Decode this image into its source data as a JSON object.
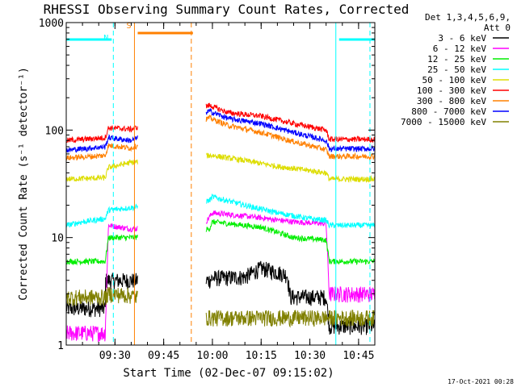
{
  "chart_data": {
    "type": "line",
    "title": "RHESSI Observing Summary Count Rates, Corrected",
    "xlabel": "Start Time (02-Dec-07 09:15:02)",
    "ylabel": "Corrected Count Rate (s⁻¹ detector⁻¹)",
    "yscale": "log",
    "ylim": [
      1,
      1000
    ],
    "xlim_minutes_after_0915": [
      0,
      95
    ],
    "x_ticks": [
      {
        "label": "09:30",
        "min": 15
      },
      {
        "label": "09:45",
        "min": 30
      },
      {
        "label": "10:00",
        "min": 45
      },
      {
        "label": "10:15",
        "min": 60
      },
      {
        "label": "10:30",
        "min": 75
      },
      {
        "label": "10:45",
        "min": 90
      }
    ],
    "y_ticks": [
      {
        "label": "1",
        "value": 1
      },
      {
        "label": "10",
        "value": 10
      },
      {
        "label": "100",
        "value": 100
      },
      {
        "label": "1000",
        "value": 1000
      }
    ],
    "legend_header": [
      "Det 1,3,4,5,6,9,",
      "Att 0"
    ],
    "legend_position": "right",
    "series": [
      {
        "name": "3 - 6 keV",
        "color": "#000000",
        "points": [
          [
            0,
            2.2
          ],
          [
            12,
            2.2
          ],
          [
            12,
            4
          ],
          [
            20,
            4
          ],
          [
            44,
            4
          ],
          [
            45,
            4.2
          ],
          [
            55,
            4.3
          ],
          [
            60,
            5.2
          ],
          [
            68,
            4.5
          ],
          [
            69,
            2.8
          ],
          [
            80,
            2.8
          ],
          [
            81,
            1.5
          ],
          [
            95,
            1.5
          ]
        ]
      },
      {
        "name": "6 - 12 keV",
        "color": "#ff00ff",
        "points": [
          [
            0,
            1.3
          ],
          [
            12,
            1.3
          ],
          [
            13,
            13
          ],
          [
            20,
            12
          ],
          [
            43,
            14
          ],
          [
            45,
            17
          ],
          [
            58,
            15.5
          ],
          [
            70,
            14
          ],
          [
            80,
            13.5
          ],
          [
            81,
            3
          ],
          [
            95,
            3
          ]
        ]
      },
      {
        "name": "12 - 25 keV",
        "color": "#00ee00",
        "points": [
          [
            0,
            6
          ],
          [
            12,
            6
          ],
          [
            13,
            10
          ],
          [
            20,
            10
          ],
          [
            44,
            12
          ],
          [
            45,
            14
          ],
          [
            60,
            12.5
          ],
          [
            70,
            10
          ],
          [
            80,
            9.5
          ],
          [
            81,
            6
          ],
          [
            95,
            6
          ]
        ]
      },
      {
        "name": "25 - 50 keV",
        "color": "#00ffff",
        "points": [
          [
            0,
            13
          ],
          [
            5,
            14
          ],
          [
            12,
            15
          ],
          [
            13,
            18
          ],
          [
            20,
            19
          ],
          [
            44,
            22
          ],
          [
            45,
            24
          ],
          [
            55,
            20
          ],
          [
            65,
            17
          ],
          [
            75,
            15
          ],
          [
            80,
            14.5
          ],
          [
            81,
            13
          ],
          [
            95,
            13
          ]
        ]
      },
      {
        "name": "50 - 100 keV",
        "color": "#dddd00",
        "points": [
          [
            0,
            35
          ],
          [
            12,
            36
          ],
          [
            13,
            45
          ],
          [
            20,
            50
          ],
          [
            44,
            58
          ],
          [
            45,
            58
          ],
          [
            55,
            52
          ],
          [
            65,
            46
          ],
          [
            75,
            42
          ],
          [
            80,
            40
          ],
          [
            81,
            35
          ],
          [
            95,
            35
          ]
        ]
      },
      {
        "name": "100 - 300 keV",
        "color": "#ff0000",
        "points": [
          [
            0,
            80
          ],
          [
            12,
            85
          ],
          [
            13,
            105
          ],
          [
            20,
            102
          ],
          [
            44,
            170
          ],
          [
            50,
            145
          ],
          [
            60,
            135
          ],
          [
            70,
            115
          ],
          [
            80,
            100
          ],
          [
            81,
            82
          ],
          [
            95,
            82
          ]
        ]
      },
      {
        "name": "300 - 800 keV",
        "color": "#ff8000",
        "points": [
          [
            0,
            55
          ],
          [
            12,
            58
          ],
          [
            13,
            72
          ],
          [
            20,
            68
          ],
          [
            44,
            130
          ],
          [
            50,
            110
          ],
          [
            60,
            95
          ],
          [
            70,
            78
          ],
          [
            80,
            66
          ],
          [
            81,
            57
          ],
          [
            95,
            57
          ]
        ]
      },
      {
        "name": "800 - 7000 keV",
        "color": "#0000ff",
        "points": [
          [
            0,
            65
          ],
          [
            12,
            70
          ],
          [
            13,
            85
          ],
          [
            20,
            80
          ],
          [
            44,
            150
          ],
          [
            50,
            128
          ],
          [
            60,
            115
          ],
          [
            70,
            95
          ],
          [
            80,
            80
          ],
          [
            81,
            67
          ],
          [
            95,
            67
          ]
        ]
      },
      {
        "name": "7000 - 15000 keV",
        "color": "#808000",
        "points": [
          [
            0,
            2.8
          ],
          [
            12,
            2.8
          ],
          [
            13,
            3
          ],
          [
            20,
            2.9
          ],
          [
            44,
            1.8
          ],
          [
            60,
            1.8
          ],
          [
            80,
            1.8
          ],
          [
            95,
            1.8
          ]
        ]
      }
    ],
    "flags": [
      {
        "name": "N",
        "color": "#00ffff",
        "intervals": [
          [
            0,
            14
          ],
          [
            84,
            95
          ]
        ]
      },
      {
        "name": "S",
        "color": "#ff8000",
        "intervals": [
          [
            22,
            39
          ]
        ]
      }
    ],
    "markers": [
      {
        "color": "#00ffff",
        "min": 14.5,
        "style": "dashed"
      },
      {
        "color": "#ff8000",
        "min": 21,
        "style": "solid"
      },
      {
        "color": "#ff8000",
        "min": 38.5,
        "style": "dashed"
      },
      {
        "color": "#00ffff",
        "min": 83,
        "style": "solid"
      },
      {
        "color": "#00ffff",
        "min": 93.5,
        "style": "dashed"
      }
    ]
  },
  "footer": {
    "date_stamp": "17-Oct-2021 00:28"
  }
}
